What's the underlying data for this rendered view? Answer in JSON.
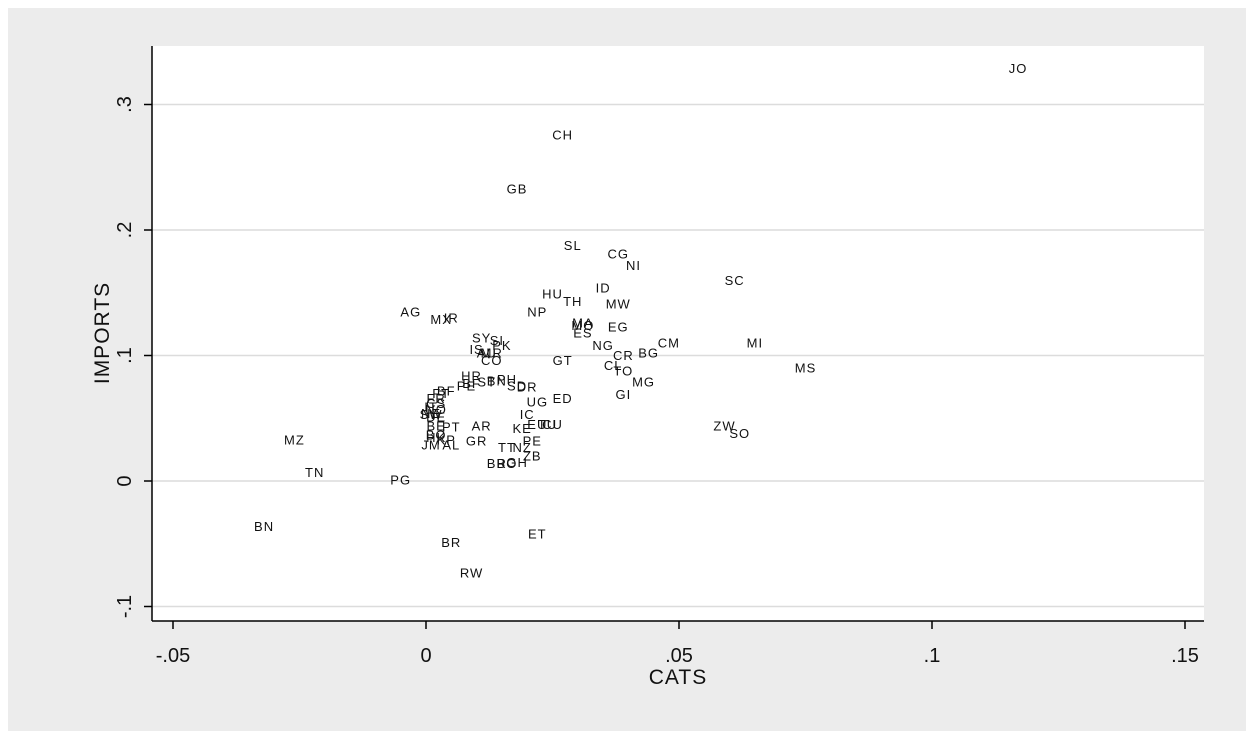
{
  "colors": {
    "outer_background": "#ececec",
    "plot_background": "#ffffff",
    "gridline": "#dcdcdc",
    "axis": "#000000",
    "text": "#111111"
  },
  "chart_data": {
    "type": "scatter",
    "title": "",
    "xlabel": "CATS",
    "ylabel": "IMPORTS",
    "xlim": [
      -0.055,
      0.155
    ],
    "ylim": [
      -0.11,
      0.335
    ],
    "xticks": [
      -0.05,
      0,
      0.05,
      0.1,
      0.15
    ],
    "xtick_labels": [
      "-.05",
      "0",
      ".05",
      ".1",
      ".15"
    ],
    "yticks": [
      -0.1,
      0,
      0.1,
      0.2,
      0.3
    ],
    "ytick_labels": [
      "-.1",
      "0",
      ".1",
      ".2",
      ".3"
    ],
    "grid": "horizontal",
    "legend": "none",
    "marker": "country code label",
    "points": [
      {
        "label": "JO",
        "x": 0.117,
        "y": 0.328
      },
      {
        "label": "CH",
        "x": 0.027,
        "y": 0.275
      },
      {
        "label": "GB",
        "x": 0.018,
        "y": 0.232
      },
      {
        "label": "SL",
        "x": 0.029,
        "y": 0.187
      },
      {
        "label": "CG",
        "x": 0.038,
        "y": 0.18
      },
      {
        "label": "NI",
        "x": 0.041,
        "y": 0.171
      },
      {
        "label": "SC",
        "x": 0.061,
        "y": 0.159
      },
      {
        "label": "ID",
        "x": 0.035,
        "y": 0.153
      },
      {
        "label": "HU",
        "x": 0.025,
        "y": 0.148
      },
      {
        "label": "TH",
        "x": 0.029,
        "y": 0.142
      },
      {
        "label": "MW",
        "x": 0.038,
        "y": 0.14
      },
      {
        "label": "AG",
        "x": -0.003,
        "y": 0.134
      },
      {
        "label": "NP",
        "x": 0.022,
        "y": 0.134
      },
      {
        "label": "MX",
        "x": 0.003,
        "y": 0.128
      },
      {
        "label": "IR",
        "x": 0.005,
        "y": 0.129
      },
      {
        "label": "MA",
        "x": 0.031,
        "y": 0.125
      },
      {
        "label": "MO",
        "x": 0.031,
        "y": 0.123
      },
      {
        "label": "EG",
        "x": 0.038,
        "y": 0.122
      },
      {
        "label": "ES",
        "x": 0.031,
        "y": 0.117
      },
      {
        "label": "SY",
        "x": 0.011,
        "y": 0.113
      },
      {
        "label": "SI",
        "x": 0.014,
        "y": 0.111
      },
      {
        "label": "PK",
        "x": 0.015,
        "y": 0.107
      },
      {
        "label": "IS",
        "x": 0.01,
        "y": 0.104
      },
      {
        "label": "NG",
        "x": 0.035,
        "y": 0.107
      },
      {
        "label": "CM",
        "x": 0.048,
        "y": 0.109
      },
      {
        "label": "MI",
        "x": 0.065,
        "y": 0.109
      },
      {
        "label": "AU",
        "x": 0.012,
        "y": 0.101
      },
      {
        "label": "MR",
        "x": 0.013,
        "y": 0.101
      },
      {
        "label": "BG",
        "x": 0.044,
        "y": 0.101
      },
      {
        "label": "CR",
        "x": 0.039,
        "y": 0.099
      },
      {
        "label": "CO",
        "x": 0.013,
        "y": 0.095
      },
      {
        "label": "GT",
        "x": 0.027,
        "y": 0.095
      },
      {
        "label": "CL",
        "x": 0.037,
        "y": 0.091
      },
      {
        "label": "TO",
        "x": 0.039,
        "y": 0.087
      },
      {
        "label": "MS",
        "x": 0.075,
        "y": 0.089
      },
      {
        "label": "HR",
        "x": 0.009,
        "y": 0.083
      },
      {
        "label": "MG",
        "x": 0.043,
        "y": 0.078
      },
      {
        "label": "PH",
        "x": 0.016,
        "y": 0.08
      },
      {
        "label": "BN",
        "x": 0.014,
        "y": 0.079
      },
      {
        "label": "ST",
        "x": 0.012,
        "y": 0.078
      },
      {
        "label": "SD",
        "x": 0.018,
        "y": 0.075
      },
      {
        "label": "DR",
        "x": 0.02,
        "y": 0.074
      },
      {
        "label": "BF",
        "x": 0.009,
        "y": 0.077
      },
      {
        "label": "PE",
        "x": 0.008,
        "y": 0.075
      },
      {
        "label": "BF",
        "x": 0.004,
        "y": 0.071
      },
      {
        "label": "FT",
        "x": 0.003,
        "y": 0.069
      },
      {
        "label": "GI",
        "x": 0.039,
        "y": 0.068
      },
      {
        "label": "ED",
        "x": 0.027,
        "y": 0.065
      },
      {
        "label": "UG",
        "x": 0.022,
        "y": 0.062
      },
      {
        "label": "FR",
        "x": 0.002,
        "y": 0.065
      },
      {
        "label": "CS",
        "x": 0.002,
        "y": 0.061
      },
      {
        "label": "IT",
        "x": 0.001,
        "y": 0.058
      },
      {
        "label": "NO",
        "x": 0.002,
        "y": 0.056
      },
      {
        "label": "NE",
        "x": 0.001,
        "y": 0.053
      },
      {
        "label": "SW",
        "x": 0.001,
        "y": 0.052
      },
      {
        "label": "DE",
        "x": 0.002,
        "y": 0.05
      },
      {
        "label": "IC",
        "x": 0.02,
        "y": 0.052
      },
      {
        "label": "TU",
        "x": 0.024,
        "y": 0.044
      },
      {
        "label": "EU",
        "x": 0.022,
        "y": 0.044
      },
      {
        "label": "CU",
        "x": 0.025,
        "y": 0.044
      },
      {
        "label": "PT",
        "x": 0.005,
        "y": 0.042
      },
      {
        "label": "BE",
        "x": 0.002,
        "y": 0.043
      },
      {
        "label": "AR",
        "x": 0.011,
        "y": 0.043
      },
      {
        "label": "KE",
        "x": 0.019,
        "y": 0.041
      },
      {
        "label": "ZW",
        "x": 0.059,
        "y": 0.043
      },
      {
        "label": "SO",
        "x": 0.062,
        "y": 0.037
      },
      {
        "label": "BO",
        "x": 0.002,
        "y": 0.036
      },
      {
        "label": "HK",
        "x": 0.002,
        "y": 0.034
      },
      {
        "label": "KP",
        "x": 0.004,
        "y": 0.032
      },
      {
        "label": "GR",
        "x": 0.01,
        "y": 0.031
      },
      {
        "label": "MZ",
        "x": -0.026,
        "y": 0.032
      },
      {
        "label": "PE",
        "x": 0.021,
        "y": 0.031
      },
      {
        "label": "JM",
        "x": 0.001,
        "y": 0.028
      },
      {
        "label": "AL",
        "x": 0.005,
        "y": 0.028
      },
      {
        "label": "TT",
        "x": 0.016,
        "y": 0.026
      },
      {
        "label": "NZ",
        "x": 0.019,
        "y": 0.026
      },
      {
        "label": "ZB",
        "x": 0.021,
        "y": 0.019
      },
      {
        "label": "BR",
        "x": 0.014,
        "y": 0.013
      },
      {
        "label": "BO",
        "x": 0.016,
        "y": 0.013
      },
      {
        "label": "GH",
        "x": 0.018,
        "y": 0.014
      },
      {
        "label": "TN",
        "x": -0.022,
        "y": 0.006
      },
      {
        "label": "PG",
        "x": -0.005,
        "y": 0.0
      },
      {
        "label": "BN",
        "x": -0.032,
        "y": -0.037
      },
      {
        "label": "ET",
        "x": 0.022,
        "y": -0.043
      },
      {
        "label": "BR",
        "x": 0.005,
        "y": -0.05
      },
      {
        "label": "RW",
        "x": 0.009,
        "y": -0.074
      }
    ]
  }
}
